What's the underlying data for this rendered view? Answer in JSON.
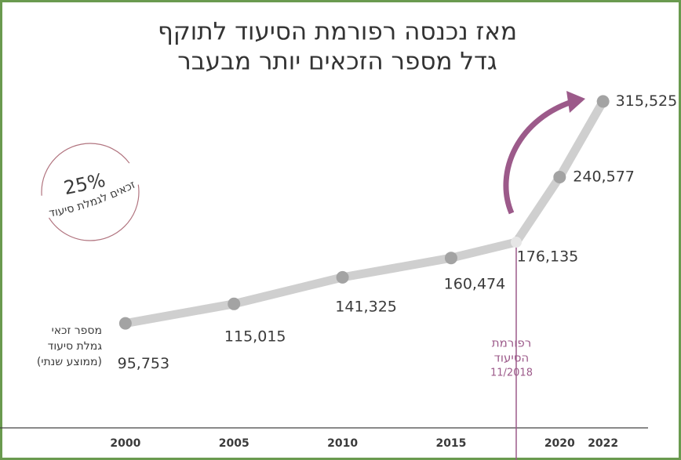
{
  "chart_data": {
    "type": "line",
    "title": [
      "מאז נכנסה רפורמת הסיעוד לתוקף",
      "גדל מספר הזכאים יותר מבעבר"
    ],
    "y_label": [
      "מספר זכאי",
      "גמלת סיעוד",
      "(ממוצע שנתי)"
    ],
    "badge": {
      "value": "25%",
      "label": "זכאים לגמלת סיעוד"
    },
    "reform": {
      "x": 2018,
      "label": [
        "רפורמת",
        "הסיעוד",
        "11/2018"
      ]
    },
    "x": [
      2000,
      2005,
      2010,
      2015,
      2018,
      2020,
      2022
    ],
    "series": [
      {
        "color": "#cfcfcf",
        "point_color": "#a3a3a3",
        "values": [
          95753,
          115015,
          141325,
          160474,
          176135,
          240577,
          315525
        ],
        "value_labels": [
          "95,753",
          "115,015",
          "141,325",
          "160,474",
          "176,135",
          "240,577",
          "315,525"
        ]
      }
    ],
    "xlim": [
      1995,
      2024
    ],
    "xticks": [
      2000,
      2005,
      2010,
      2015,
      2020,
      2022
    ],
    "ylim": [
      0,
      350000
    ]
  }
}
